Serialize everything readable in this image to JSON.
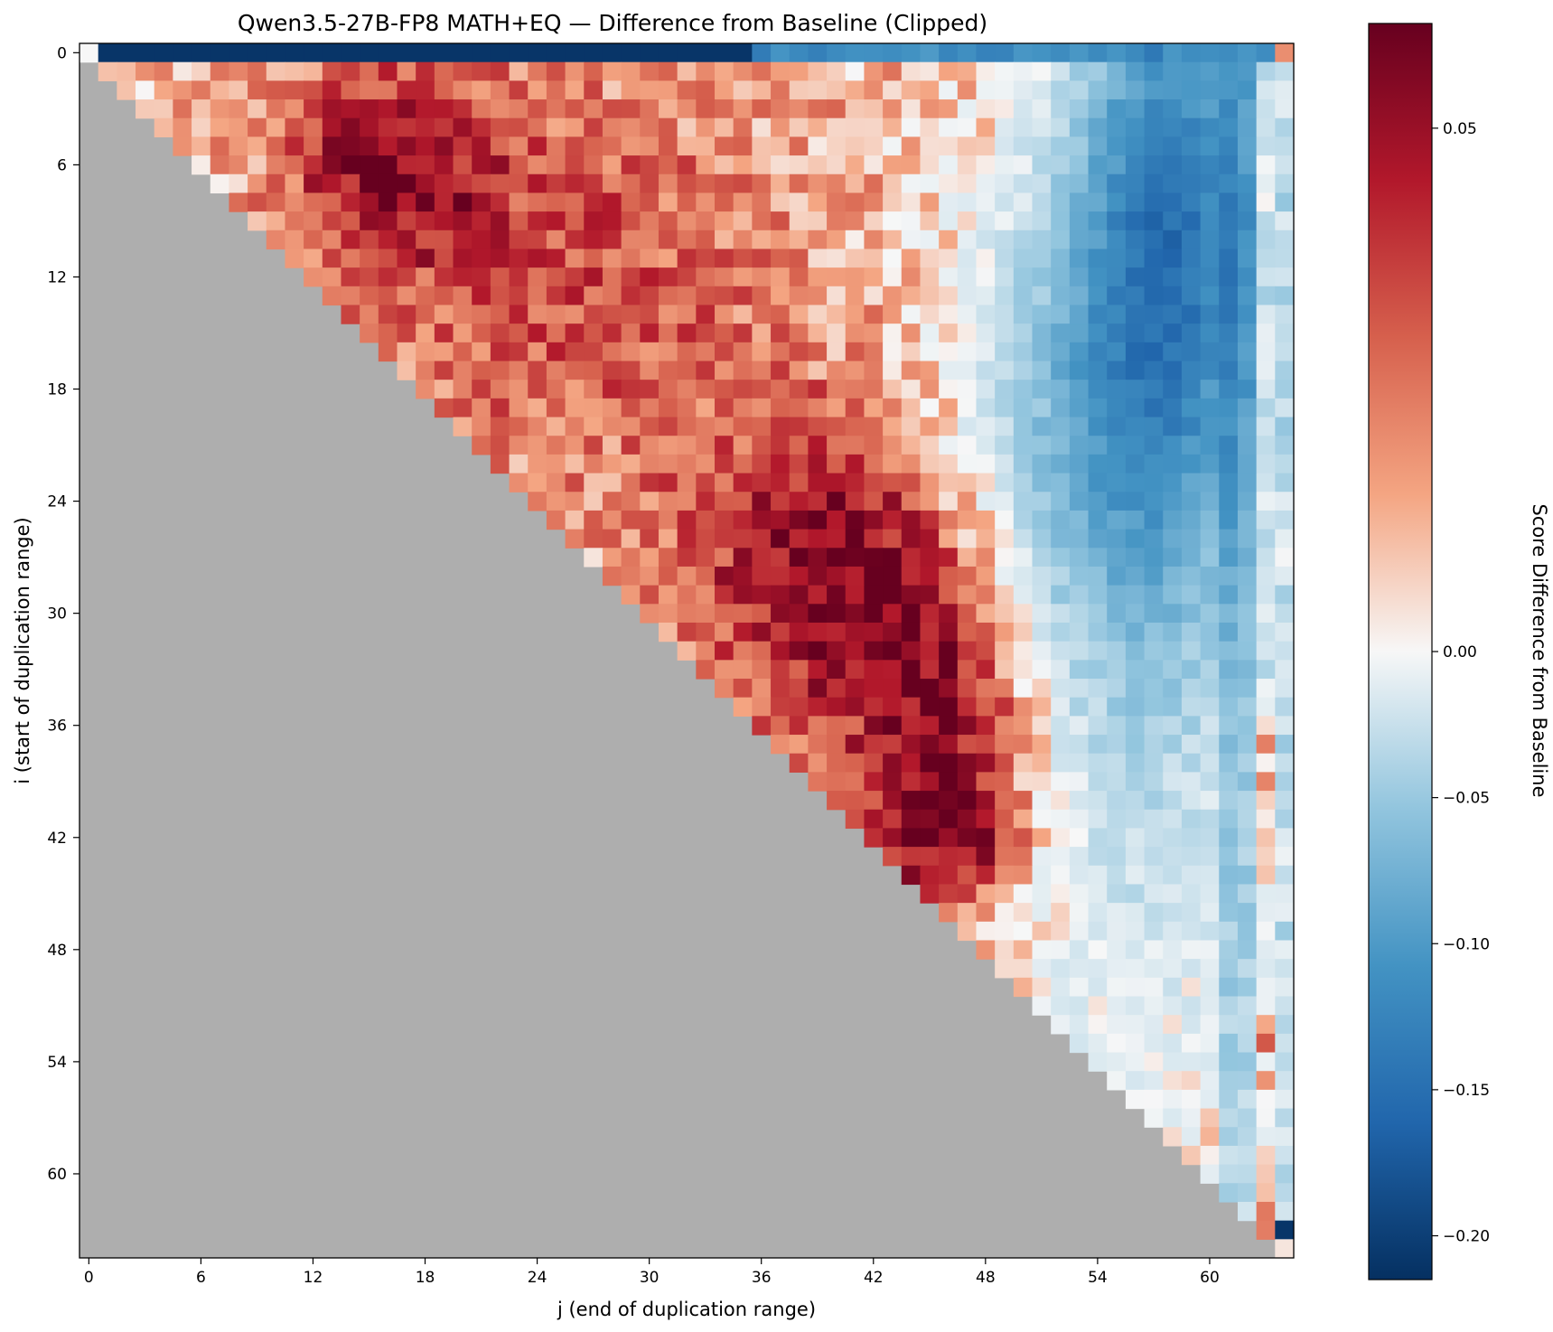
{
  "chart_data": {
    "type": "heatmap",
    "title": "Qwen3.5-27B-FP8 MATH+EQ — Difference from Baseline (Clipped)",
    "xlabel": "j (end of duplication range)",
    "ylabel": "i (start of duplication range)",
    "n": 65,
    "x_ticks": [
      0,
      6,
      12,
      18,
      24,
      30,
      36,
      42,
      48,
      54,
      60
    ],
    "y_ticks": [
      0,
      6,
      12,
      18,
      24,
      30,
      36,
      42,
      48,
      54,
      60
    ],
    "mask": "cells with j < i are undefined (grey)",
    "mask_color": "#aeaeae",
    "colormap": "RdBu_r",
    "colorbar": {
      "label": "Score Difference from Baseline",
      "vmin": -0.215,
      "vcenter": 0.0,
      "vmax": 0.06,
      "ticks": [
        0.05,
        0.0,
        -0.05,
        -0.1,
        -0.15,
        -0.2
      ],
      "tick_labels": [
        "0.05",
        "0.00",
        "−0.05",
        "−0.10",
        "−0.15",
        "−0.20"
      ]
    },
    "value_model": {
      "note": "Approximate per-cell score difference read from the color field; values recomputed per cell (i, j) from these region estimates",
      "regions": [
        {
          "name": "row-0 collapse (j 1–35)",
          "value": -0.21
        },
        {
          "name": "row-0 tail (j 36–62)",
          "value": -0.12
        },
        {
          "name": "upper-left warm band (i 2–11, j 8–20)",
          "value": 0.045
        },
        {
          "name": "diagonal hot core (i 24–44, j 31–52)",
          "value": 0.05
        },
        {
          "name": "right-side cool band (i 0–20, j 54–60)",
          "value": -0.14
        },
        {
          "name": "far right edge (j 62–64)",
          "value": -0.04
        },
        {
          "name": "corner cell (63,64)",
          "value": -0.21
        },
        {
          "name": "corner cell (0,0)",
          "value": 0.0
        },
        {
          "name": "corner cell (0,64)",
          "value": 0.02
        }
      ]
    }
  }
}
